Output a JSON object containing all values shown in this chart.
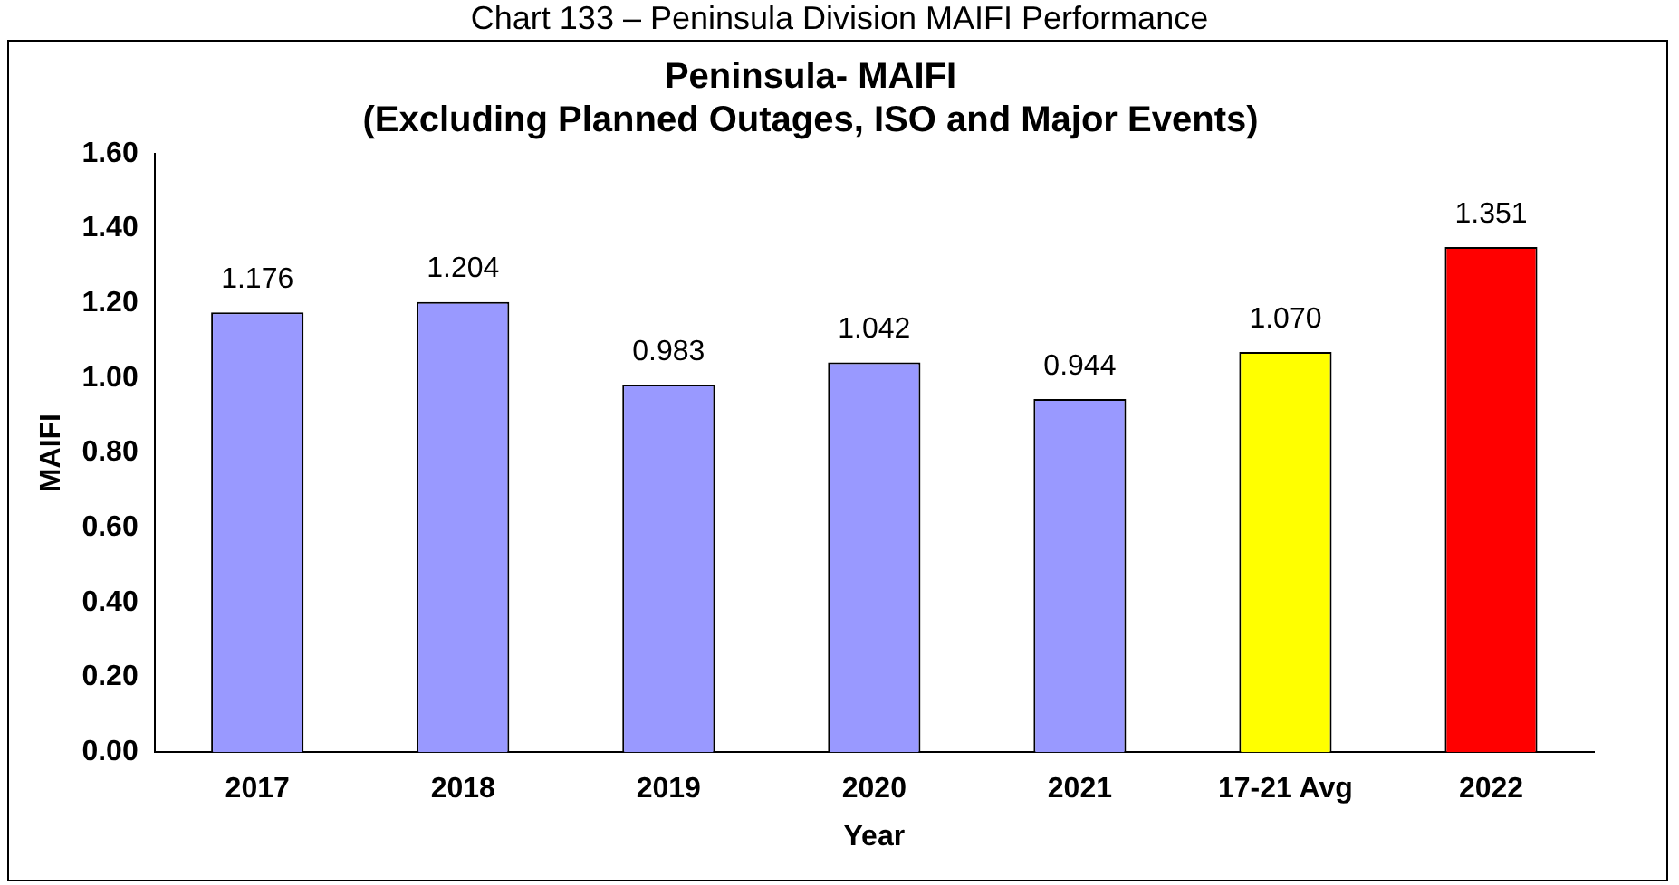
{
  "chart_data": {
    "type": "bar",
    "title": [
      "Peninsula- MAIFI",
      "(Excluding Planned Outages, ISO and Major Events)"
    ],
    "annotations": [
      "Chart 133 – Peninsula Division MAIFI Performance"
    ],
    "xlabel": "Year",
    "ylabel": "MAIFI",
    "categories": [
      "2017",
      "2018",
      "2019",
      "2020",
      "2021",
      "17-21 Avg",
      "2022"
    ],
    "values": [
      1.176,
      1.204,
      0.983,
      1.042,
      0.944,
      1.07,
      1.351
    ],
    "value_labels": [
      "1.176",
      "1.204",
      "0.983",
      "1.042",
      "0.944",
      "1.070",
      "1.351"
    ],
    "colors": [
      "#9999ff",
      "#9999ff",
      "#9999ff",
      "#9999ff",
      "#9999ff",
      "#ffff00",
      "#ff0000"
    ],
    "ylim": [
      0,
      1.6
    ],
    "yticks": [
      {
        "value": 0,
        "label": "0.00"
      },
      {
        "value": 0.2,
        "label": "0.20"
      },
      {
        "value": 0.4,
        "label": "0.40"
      },
      {
        "value": 0.6,
        "label": "0.60"
      },
      {
        "value": 0.8,
        "label": "0.80"
      },
      {
        "value": 1.0,
        "label": "1.00"
      },
      {
        "value": 1.2,
        "label": "1.20"
      },
      {
        "value": 1.4,
        "label": "1.40"
      },
      {
        "value": 1.6,
        "label": "1.60"
      }
    ],
    "grid": false,
    "legend": false
  }
}
